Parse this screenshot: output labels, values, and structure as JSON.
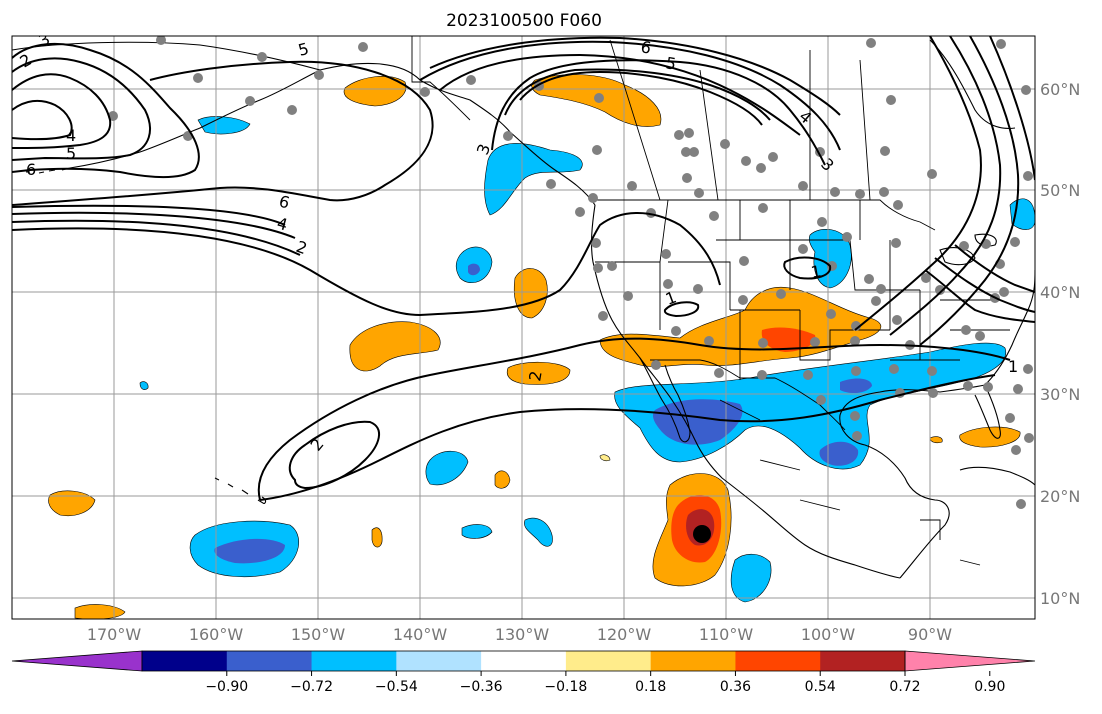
{
  "title": "2023100500 F060",
  "lat_labels": [
    "60°N",
    "50°N",
    "40°N",
    "30°N",
    "20°N",
    "10°N"
  ],
  "lon_labels": [
    "170°W",
    "160°W",
    "150°W",
    "140°W",
    "130°W",
    "120°W",
    "110°W",
    "100°W",
    "90°W"
  ],
  "colorbar": {
    "ticks": [
      "−0.90",
      "−0.72",
      "−0.54",
      "−0.36",
      "−0.18",
      "0.18",
      "0.36",
      "0.54",
      "0.72",
      "0.90"
    ],
    "colors": [
      "#9932cc",
      "#00008b",
      "#3a5fcd",
      "#00bfff",
      "#b0e2ff",
      "#ffffff",
      "#ffec8b",
      "#ffa500",
      "#ff4500",
      "#b22222",
      "#ff82ab"
    ]
  },
  "contour_labels": [
    "2",
    "3",
    "4",
    "5",
    "6",
    "6",
    "5",
    "4",
    "3",
    "2",
    "6",
    "5",
    "4",
    "3",
    "1",
    "1",
    "2",
    "2",
    "1"
  ],
  "colors": {
    "grid": "#9a9a9a",
    "station": "#808080",
    "label": "#777777"
  }
}
